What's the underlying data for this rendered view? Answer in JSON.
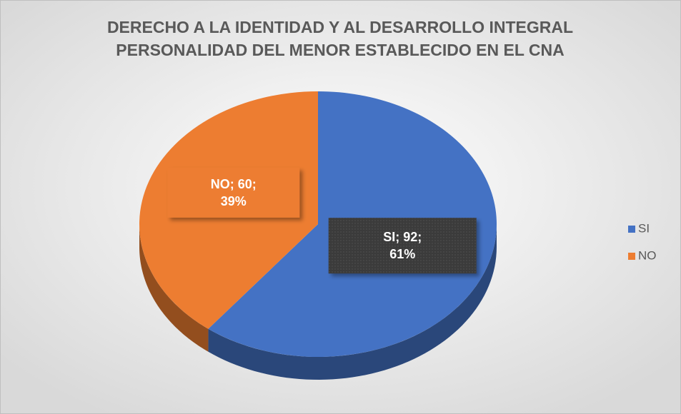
{
  "chart_data": {
    "type": "pie3d",
    "title": "DERECHO A LA IDENTIDAD Y AL DESARROLLO INTEGRAL PERSONALIDAD DEL MENOR ESTABLECIDO EN EL CNA",
    "categories": [
      "SI",
      "NO"
    ],
    "values": [
      92,
      60
    ],
    "value_labels": [
      "SI; 92; 61%",
      "NO; 60; 39%"
    ],
    "colors": [
      "#4472c4",
      "#ed7d31"
    ],
    "legend": "right"
  }
}
